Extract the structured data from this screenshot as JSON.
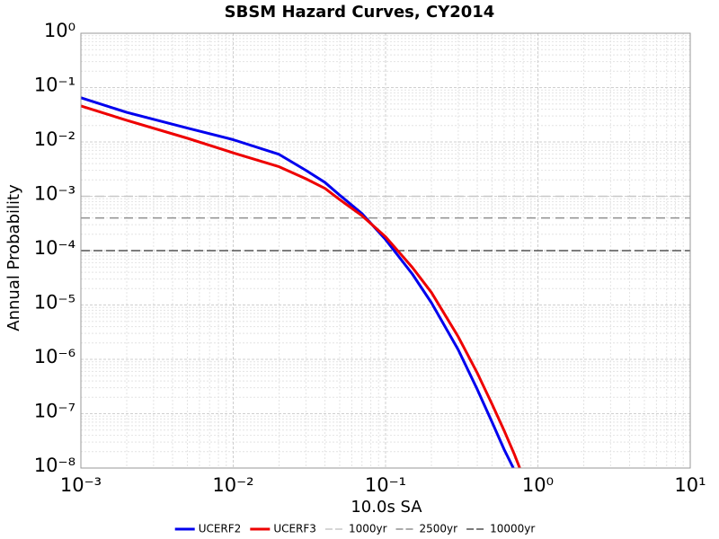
{
  "chart_data": {
    "type": "line",
    "title": "SBSM Hazard Curves, CY2014",
    "x_label": "10.0s SA",
    "y_label": "Annual Probability",
    "xscale": "log",
    "yscale": "log",
    "grid": true,
    "legend": "bottom",
    "xlim": [
      0.001,
      10
    ],
    "ylim": [
      1e-08,
      1
    ],
    "xticks": [
      {
        "value": 0.001,
        "label": "10⁻³"
      },
      {
        "value": 0.01,
        "label": "10⁻²"
      },
      {
        "value": 0.1,
        "label": "10⁻¹"
      },
      {
        "value": 1,
        "label": "10⁰"
      },
      {
        "value": 10,
        "label": "10¹"
      }
    ],
    "yticks": [
      {
        "value": 1e-08,
        "label": "10⁻⁸"
      },
      {
        "value": 1e-07,
        "label": "10⁻⁷"
      },
      {
        "value": 1e-06,
        "label": "10⁻⁶"
      },
      {
        "value": 1e-05,
        "label": "10⁻⁵"
      },
      {
        "value": 0.0001,
        "label": "10⁻⁴"
      },
      {
        "value": 0.001,
        "label": "10⁻³"
      },
      {
        "value": 0.01,
        "label": "10⁻²"
      },
      {
        "value": 0.1,
        "label": "10⁻¹"
      },
      {
        "value": 1,
        "label": "10⁰"
      }
    ],
    "series": [
      {
        "name": "UCERF2",
        "color": "#0000ee",
        "x": [
          0.001,
          0.002,
          0.005,
          0.01,
          0.02,
          0.03,
          0.04,
          0.05,
          0.07,
          0.1,
          0.15,
          0.2,
          0.3,
          0.4,
          0.5,
          0.6,
          0.69
        ],
        "values": [
          0.065,
          0.035,
          0.018,
          0.011,
          0.0059,
          0.003,
          0.0018,
          0.00105,
          0.00048,
          0.00016,
          3.7e-05,
          1.1e-05,
          1.5e-06,
          2.8e-07,
          7e-08,
          2.2e-08,
          1e-08
        ]
      },
      {
        "name": "UCERF3",
        "color": "#ee0000",
        "x": [
          0.001,
          0.002,
          0.005,
          0.01,
          0.02,
          0.03,
          0.04,
          0.05,
          0.07,
          0.1,
          0.15,
          0.2,
          0.3,
          0.4,
          0.5,
          0.6,
          0.7,
          0.76
        ],
        "values": [
          0.046,
          0.025,
          0.0117,
          0.0063,
          0.0035,
          0.0021,
          0.0014,
          0.00087,
          0.00044,
          0.00018,
          4.9e-05,
          1.7e-05,
          2.6e-06,
          5.6e-07,
          1.5e-07,
          4.9e-08,
          1.8e-08,
          1e-08
        ]
      }
    ],
    "hlines": [
      {
        "name": "1000yr",
        "color": "#c8c8c8",
        "value": 0.001
      },
      {
        "name": "2500yr",
        "color": "#909090",
        "value": 0.0004
      },
      {
        "name": "10000yr",
        "color": "#505050",
        "value": 0.0001
      }
    ]
  }
}
